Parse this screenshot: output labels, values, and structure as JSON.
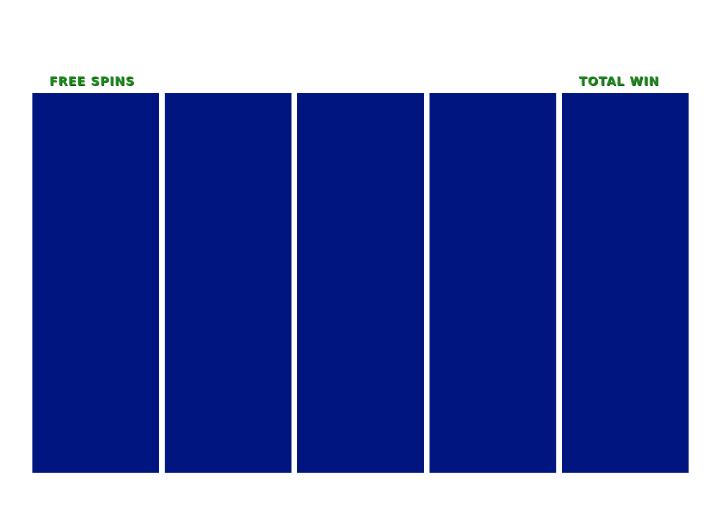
{
  "header": {
    "free_spins_label": "FREE SPINS",
    "total_win_label": "TOTAL WIN"
  }
}
